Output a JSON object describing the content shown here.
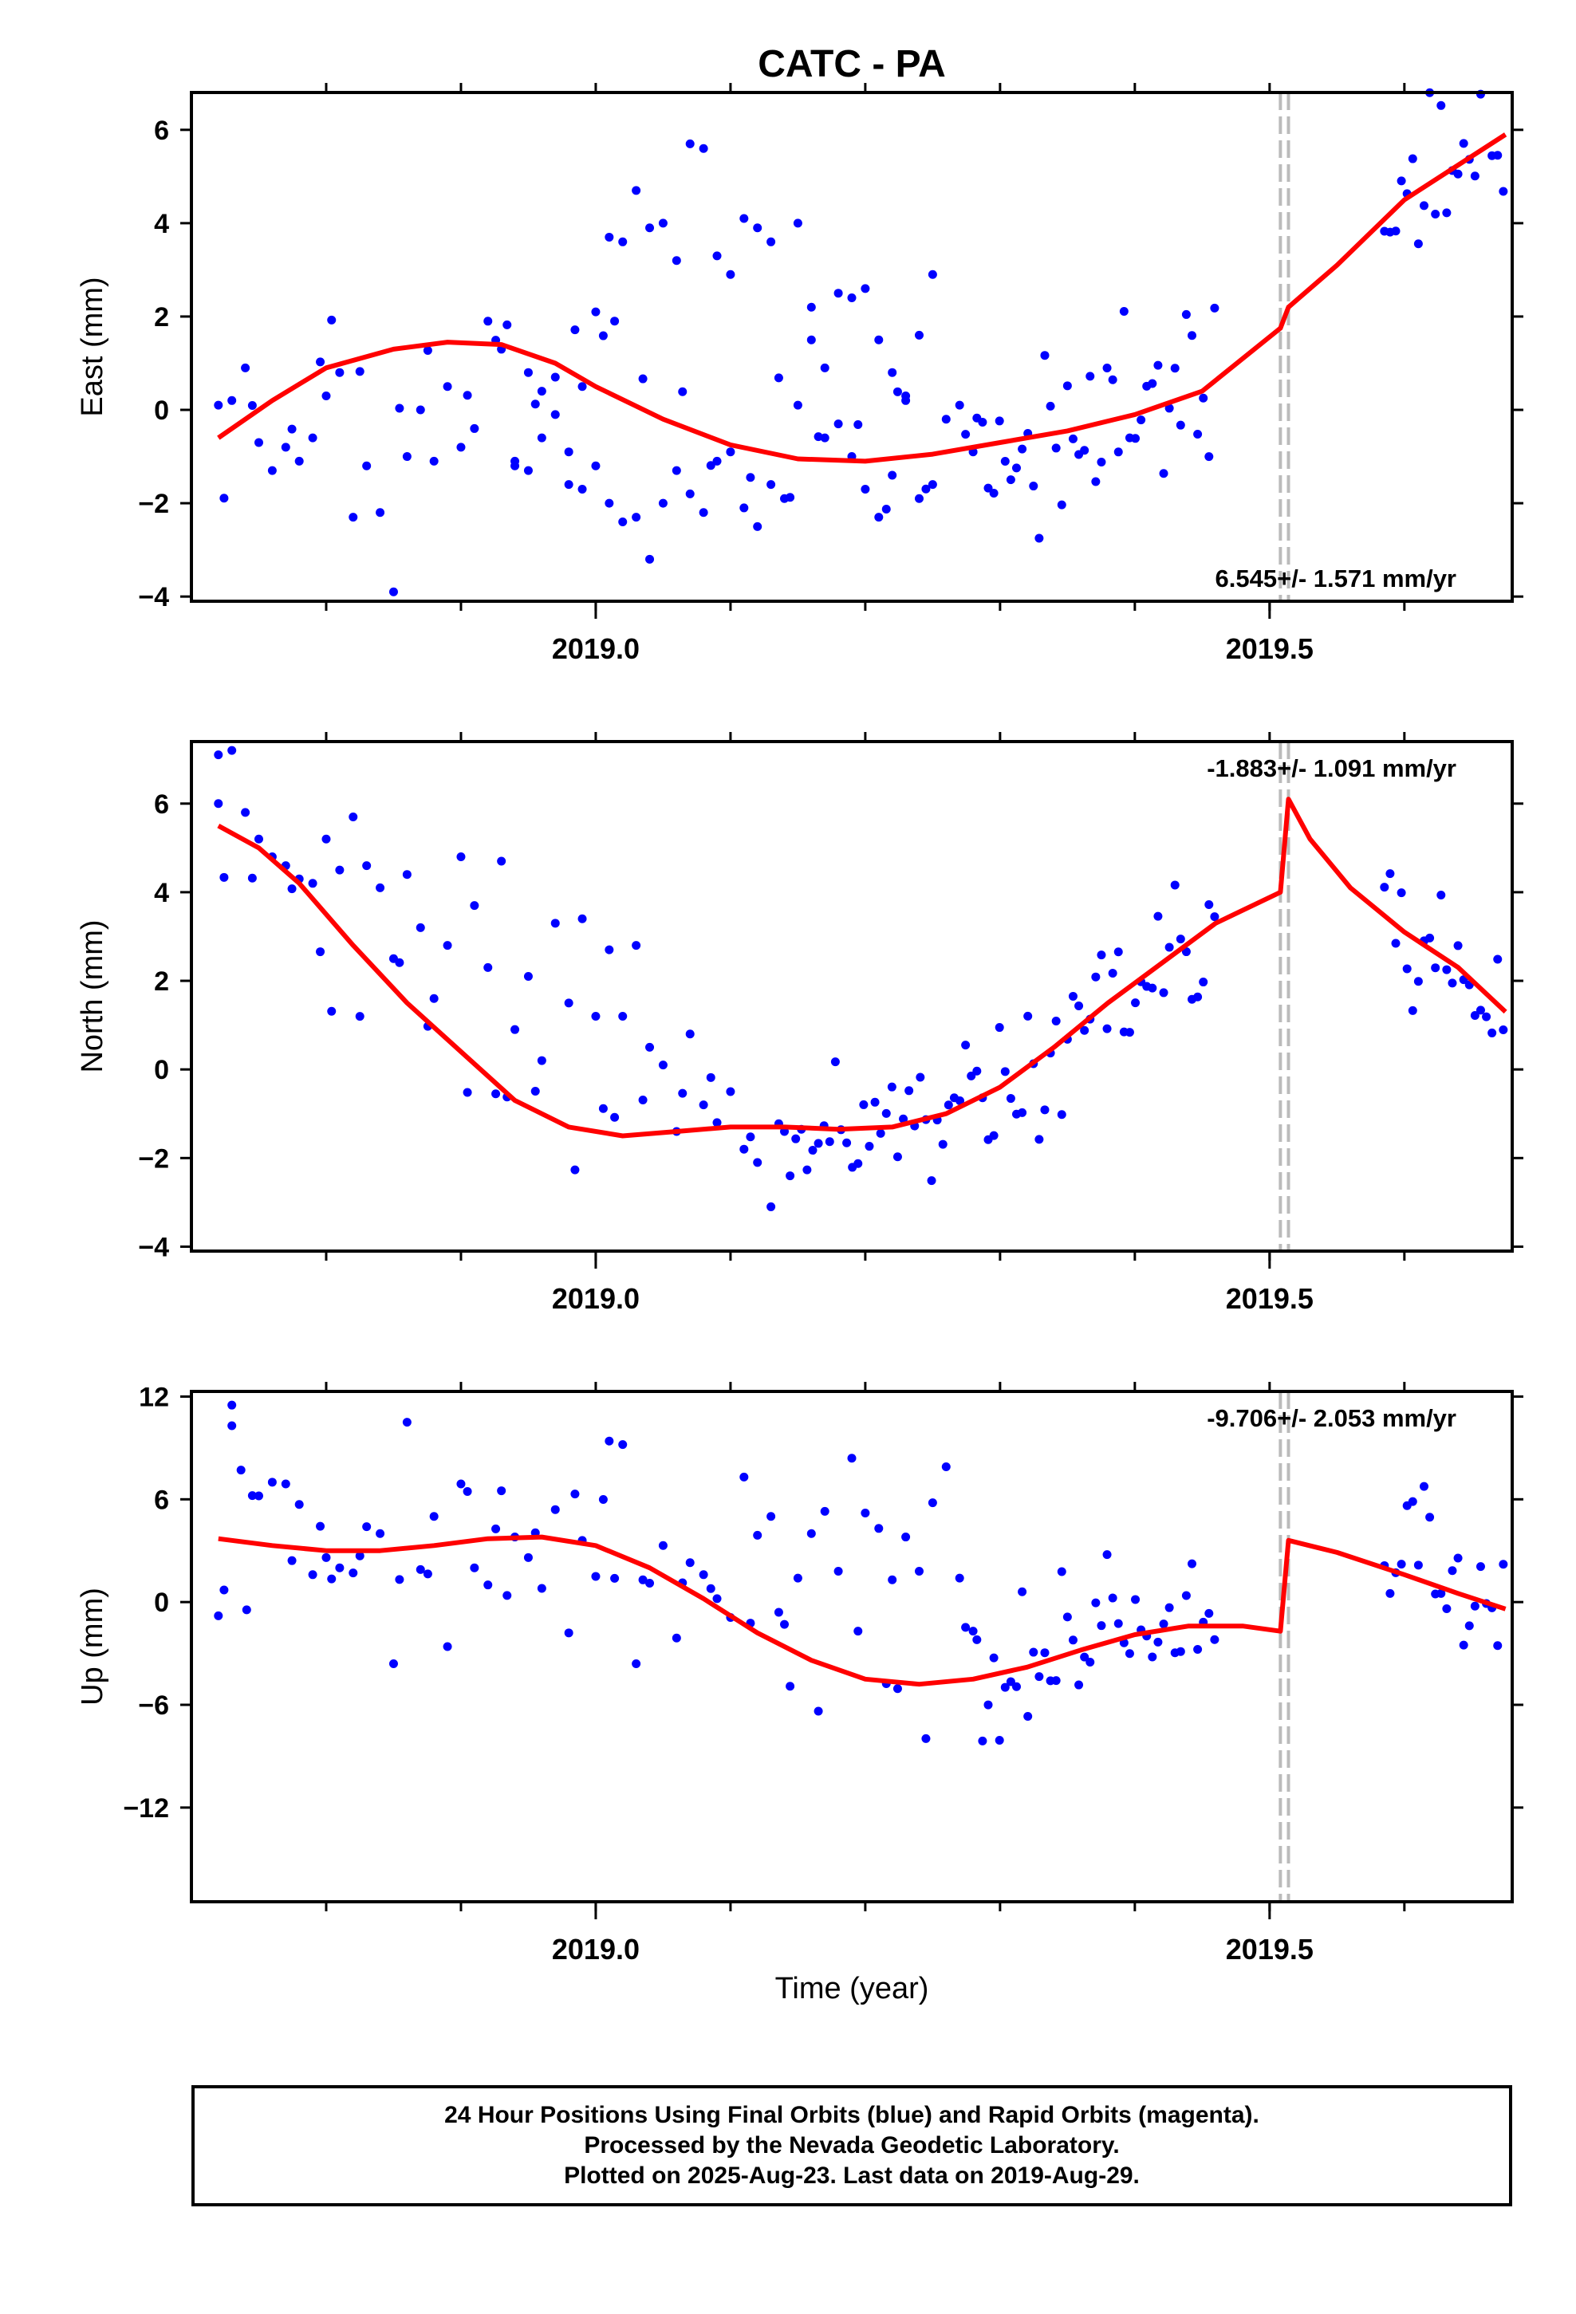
{
  "title": "CATC - PA",
  "xlabel": "Time (year)",
  "caption": [
    "24 Hour Positions Using Final Orbits (blue) and Rapid Orbits (magenta).",
    "Processed by the Nevada Geodetic Laboratory.",
    "Plotted on 2025-Aug-23. Last data on 2019-Aug-29."
  ],
  "colors": {
    "points": "#0000ff",
    "model": "#ff0000",
    "event_line": "#bbbbbb",
    "axes": "#000000"
  },
  "chart_data": [
    {
      "type": "scatter",
      "ylabel": "East (mm)",
      "xlim": [
        2018.7,
        2019.68
      ],
      "ylim": [
        -4.1,
        6.8
      ],
      "yticks": [
        -4,
        -2,
        0,
        2,
        4,
        6
      ],
      "ytick_labels": [
        "−4",
        "−2",
        "0",
        "2",
        "4",
        "6"
      ],
      "xticks": [
        2019.0,
        2019.5
      ],
      "xtick_labels": [
        "2019.0",
        "2019.5"
      ],
      "annotation": "6.545+/- 1.571 mm/yr",
      "annotation_position": "bottom-right",
      "event_lines": [
        2019.508,
        2019.514
      ],
      "points": [
        [
          2018.72,
          0.1
        ],
        [
          2018.73,
          0.2
        ],
        [
          2018.74,
          0.9
        ],
        [
          2018.75,
          -0.7
        ],
        [
          2018.76,
          -1.3
        ],
        [
          2018.77,
          -0.8
        ],
        [
          2018.78,
          -1.1
        ],
        [
          2018.79,
          -0.6
        ],
        [
          2018.8,
          0.3
        ],
        [
          2018.81,
          0.8
        ],
        [
          2018.82,
          -2.3
        ],
        [
          2018.83,
          -1.2
        ],
        [
          2018.84,
          -2.2
        ],
        [
          2018.85,
          -3.9
        ],
        [
          2018.86,
          -1.0
        ],
        [
          2018.87,
          0.0
        ],
        [
          2018.88,
          -1.1
        ],
        [
          2018.89,
          0.5
        ],
        [
          2018.9,
          -0.8
        ],
        [
          2018.91,
          -0.4
        ],
        [
          2018.92,
          1.9
        ],
        [
          2018.93,
          1.3
        ],
        [
          2018.94,
          -1.1
        ],
        [
          2018.95,
          0.8
        ],
        [
          2018.96,
          -0.6
        ],
        [
          2018.97,
          0.7
        ],
        [
          2018.98,
          -1.6
        ],
        [
          2018.99,
          0.5
        ],
        [
          2019.0,
          2.1
        ],
        [
          2019.01,
          3.7
        ],
        [
          2019.02,
          3.6
        ],
        [
          2019.03,
          4.7
        ],
        [
          2019.04,
          3.9
        ],
        [
          2019.05,
          4.0
        ],
        [
          2019.06,
          3.2
        ],
        [
          2019.07,
          5.7
        ],
        [
          2019.08,
          5.6
        ],
        [
          2019.09,
          3.3
        ],
        [
          2019.1,
          2.9
        ],
        [
          2019.11,
          4.1
        ],
        [
          2019.12,
          3.9
        ],
        [
          2019.13,
          3.6
        ],
        [
          2019.15,
          4.0
        ],
        [
          2019.16,
          1.5
        ],
        [
          2019.17,
          0.9
        ],
        [
          2019.18,
          2.5
        ],
        [
          2019.19,
          2.4
        ],
        [
          2019.2,
          2.6
        ],
        [
          2019.21,
          1.5
        ],
        [
          2019.22,
          0.8
        ],
        [
          2019.23,
          0.2
        ],
        [
          2019.24,
          1.6
        ],
        [
          2019.25,
          2.9
        ],
        [
          2018.94,
          -1.2
        ],
        [
          2018.95,
          -1.3
        ],
        [
          2018.96,
          0.4
        ],
        [
          2018.97,
          -0.1
        ],
        [
          2018.98,
          -0.9
        ],
        [
          2018.99,
          -1.7
        ],
        [
          2019.0,
          -1.2
        ],
        [
          2019.01,
          -2.0
        ],
        [
          2019.02,
          -2.4
        ],
        [
          2019.03,
          -2.3
        ],
        [
          2019.04,
          -3.2
        ],
        [
          2019.05,
          -2.0
        ],
        [
          2019.06,
          -1.3
        ],
        [
          2019.07,
          -1.8
        ],
        [
          2019.08,
          -2.2
        ],
        [
          2019.09,
          -1.1
        ],
        [
          2019.1,
          -0.9
        ],
        [
          2019.11,
          -2.1
        ],
        [
          2019.12,
          -2.5
        ],
        [
          2019.13,
          -1.6
        ],
        [
          2019.14,
          -1.9
        ],
        [
          2019.15,
          0.1
        ],
        [
          2019.16,
          2.2
        ],
        [
          2019.17,
          -0.6
        ],
        [
          2019.18,
          -0.3
        ],
        [
          2019.19,
          -1.0
        ],
        [
          2019.2,
          -1.7
        ],
        [
          2019.21,
          -2.3
        ],
        [
          2019.22,
          -1.4
        ],
        [
          2019.23,
          0.3
        ],
        [
          2019.24,
          -1.9
        ],
        [
          2019.25,
          -1.6
        ],
        [
          2019.26,
          -0.2
        ],
        [
          2019.27,
          0.1
        ],
        [
          2019.28,
          -0.9
        ]
      ]
    },
    {
      "type": "scatter",
      "ylabel": "North (mm)",
      "xlim": [
        2018.7,
        2019.68
      ],
      "ylim": [
        -4.1,
        7.4
      ],
      "yticks": [
        -4,
        -2,
        0,
        2,
        4,
        6
      ],
      "ytick_labels": [
        "−4",
        "−2",
        "0",
        "2",
        "4",
        "6"
      ],
      "xticks": [
        2019.0,
        2019.5
      ],
      "xtick_labels": [
        "2019.0",
        "2019.5"
      ],
      "annotation": "-1.883+/- 1.091 mm/yr",
      "annotation_position": "top-right",
      "event_lines": [
        2019.508,
        2019.514
      ],
      "points": [
        [
          2018.72,
          7.1
        ],
        [
          2018.73,
          7.2
        ],
        [
          2018.72,
          6.0
        ],
        [
          2018.74,
          5.8
        ],
        [
          2018.75,
          5.2
        ],
        [
          2018.76,
          4.8
        ],
        [
          2018.77,
          4.6
        ],
        [
          2018.78,
          4.3
        ],
        [
          2018.79,
          4.2
        ],
        [
          2018.8,
          5.2
        ],
        [
          2018.81,
          4.5
        ],
        [
          2018.82,
          5.7
        ],
        [
          2018.83,
          4.6
        ],
        [
          2018.84,
          4.1
        ],
        [
          2018.85,
          2.5
        ],
        [
          2018.86,
          4.4
        ],
        [
          2018.87,
          3.2
        ],
        [
          2018.88,
          1.6
        ],
        [
          2018.89,
          2.8
        ],
        [
          2018.9,
          4.8
        ],
        [
          2018.91,
          3.7
        ],
        [
          2018.92,
          2.3
        ],
        [
          2018.93,
          4.7
        ],
        [
          2018.94,
          0.9
        ],
        [
          2018.95,
          2.1
        ],
        [
          2018.96,
          0.2
        ],
        [
          2018.97,
          3.3
        ],
        [
          2018.98,
          1.5
        ],
        [
          2018.99,
          3.4
        ],
        [
          2019.0,
          1.2
        ],
        [
          2019.01,
          2.7
        ],
        [
          2019.02,
          1.2
        ],
        [
          2019.03,
          2.8
        ],
        [
          2019.04,
          0.5
        ],
        [
          2019.05,
          0.1
        ],
        [
          2019.06,
          -1.4
        ],
        [
          2019.07,
          0.8
        ],
        [
          2019.08,
          -0.8
        ],
        [
          2019.09,
          -1.2
        ],
        [
          2019.1,
          -0.5
        ],
        [
          2019.11,
          -1.8
        ],
        [
          2019.12,
          -2.1
        ],
        [
          2019.13,
          -3.1
        ],
        [
          2019.14,
          -1.4
        ]
      ]
    },
    {
      "type": "scatter",
      "ylabel": "Up (mm)",
      "xlim": [
        2018.7,
        2019.68
      ],
      "ylim": [
        -17.5,
        12.3
      ],
      "yticks": [
        -12,
        -6,
        0,
        6,
        12
      ],
      "ytick_labels": [
        "−12",
        "−6",
        "0",
        "6",
        "12"
      ],
      "xticks": [
        2019.0,
        2019.5
      ],
      "xtick_labels": [
        "2019.0",
        "2019.5"
      ],
      "annotation": "-9.706+/- 2.053 mm/yr",
      "annotation_position": "top-right",
      "event_lines": [
        2019.508,
        2019.514
      ],
      "points": [
        [
          2018.72,
          -0.8
        ],
        [
          2018.73,
          11.5
        ],
        [
          2018.73,
          10.3
        ],
        [
          2018.75,
          6.2
        ],
        [
          2018.76,
          7.0
        ],
        [
          2018.77,
          6.9
        ],
        [
          2018.78,
          5.7
        ],
        [
          2018.79,
          1.6
        ],
        [
          2018.8,
          2.6
        ],
        [
          2018.81,
          2.0
        ],
        [
          2018.82,
          1.7
        ],
        [
          2018.83,
          4.4
        ],
        [
          2018.84,
          4.0
        ],
        [
          2018.85,
          -3.6
        ],
        [
          2018.86,
          10.5
        ],
        [
          2018.87,
          1.9
        ],
        [
          2018.88,
          5.0
        ],
        [
          2018.89,
          -2.6
        ],
        [
          2018.9,
          6.9
        ],
        [
          2018.91,
          2.0
        ],
        [
          2018.92,
          1.0
        ],
        [
          2018.93,
          6.5
        ],
        [
          2018.94,
          3.8
        ],
        [
          2018.95,
          2.6
        ],
        [
          2018.96,
          0.8
        ],
        [
          2018.97,
          5.4
        ],
        [
          2018.98,
          -1.8
        ],
        [
          2018.99,
          3.6
        ],
        [
          2019.0,
          1.5
        ],
        [
          2019.01,
          9.4
        ],
        [
          2019.02,
          9.2
        ],
        [
          2019.03,
          -3.6
        ],
        [
          2019.04,
          1.1
        ],
        [
          2019.05,
          3.3
        ],
        [
          2019.06,
          -2.1
        ],
        [
          2019.07,
          2.3
        ],
        [
          2019.08,
          1.6
        ],
        [
          2019.09,
          0.2
        ],
        [
          2019.1,
          -0.9
        ],
        [
          2019.11,
          7.3
        ],
        [
          2019.12,
          3.9
        ],
        [
          2019.13,
          5.0
        ],
        [
          2019.14,
          -1.3
        ],
        [
          2019.15,
          1.4
        ],
        [
          2019.16,
          4.0
        ],
        [
          2019.17,
          5.3
        ],
        [
          2019.18,
          1.8
        ],
        [
          2019.19,
          8.4
        ],
        [
          2019.2,
          5.2
        ],
        [
          2019.21,
          4.3
        ],
        [
          2019.22,
          1.3
        ],
        [
          2019.23,
          3.8
        ],
        [
          2019.24,
          1.8
        ],
        [
          2019.25,
          5.8
        ],
        [
          2019.26,
          7.9
        ],
        [
          2019.27,
          1.4
        ],
        [
          2019.28,
          -1.7
        ]
      ]
    }
  ]
}
